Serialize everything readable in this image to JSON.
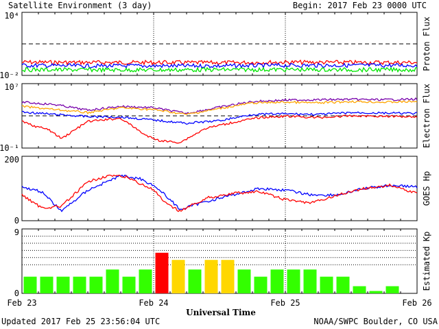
{
  "header": {
    "title": "Satellite Environment (3 day)",
    "begin": "Begin:  2017 Feb 23 0000 UTC"
  },
  "footer": {
    "updated": "Updated 2017 Feb 25 23:56:04 UTC",
    "credit": "NOAA/SWPC Boulder, CO USA"
  },
  "colors": {
    "red": "#ff0000",
    "blue": "#0000ff",
    "green": "#00e600",
    "purple": "#7700aa",
    "orange": "#ffa500",
    "kp_green": "#33ff00",
    "kp_yellow": "#ffd700",
    "kp_red": "#ff0000"
  },
  "chart_data": [
    {
      "type": "line",
      "ylabel": "Proton Flux",
      "yscale": "log",
      "ylim": [
        0.01,
        10000
      ],
      "y_ticks": [
        "10⁴",
        "10⁻²"
      ],
      "threshold": 10,
      "x_ticks": [
        "Feb 23",
        "Feb 24",
        "Feb 25",
        "Feb 26"
      ],
      "series": [
        {
          "color": "red",
          "x": [
            0,
            0.5,
            1,
            1.5,
            2,
            2.5,
            3
          ],
          "values": [
            0.18,
            0.17,
            0.17,
            0.16,
            0.18,
            0.17,
            0.17
          ]
        },
        {
          "color": "blue",
          "x": [
            0,
            0.5,
            1,
            1.5,
            2,
            2.5,
            3
          ],
          "values": [
            0.09,
            0.08,
            0.08,
            0.08,
            0.09,
            0.09,
            0.09
          ]
        },
        {
          "color": "green",
          "x": [
            0,
            0.5,
            1,
            1.5,
            2,
            2.5,
            3
          ],
          "values": [
            0.035,
            0.034,
            0.033,
            0.035,
            0.036,
            0.034,
            0.035
          ]
        }
      ]
    },
    {
      "type": "line",
      "ylabel": "Electron Flux",
      "yscale": "log",
      "ylim": [
        0.1,
        10000000
      ],
      "y_ticks": [
        "10⁷",
        "10⁻¹"
      ],
      "threshold": 1000,
      "x_ticks": [
        "Feb 23",
        "Feb 24",
        "Feb 25",
        "Feb 26"
      ],
      "series": [
        {
          "color": "purple",
          "x": [
            0,
            0.25,
            0.5,
            0.75,
            1,
            1.25,
            1.5,
            1.75,
            2,
            2.25,
            2.5,
            2.75,
            3
          ],
          "values": [
            50000,
            25000,
            5000,
            15000,
            10000,
            2000,
            12000,
            60000,
            90000,
            100000,
            110000,
            100000,
            120000
          ]
        },
        {
          "color": "orange",
          "x": [
            0,
            0.25,
            0.5,
            0.75,
            1,
            1.25,
            1.5,
            1.75,
            2,
            2.25,
            2.5,
            2.75,
            3
          ],
          "values": [
            15000,
            6000,
            2500,
            10000,
            6000,
            1500,
            8000,
            40000,
            50000,
            40000,
            60000,
            50000,
            60000
          ]
        },
        {
          "color": "blue",
          "x": [
            0,
            0.25,
            0.5,
            0.75,
            1,
            1.25,
            1.5,
            1.75,
            2,
            2.25,
            2.5,
            2.75,
            3
          ],
          "values": [
            3000,
            1500,
            800,
            700,
            300,
            120,
            250,
            1500,
            1800,
            1500,
            2500,
            2200,
            2000
          ]
        },
        {
          "color": "red",
          "x": [
            0,
            0.1,
            0.2,
            0.3,
            0.5,
            0.75,
            0.95,
            1.05,
            1.2,
            1.4,
            1.6,
            1.8,
            2,
            2.25,
            2.5,
            2.75,
            3
          ],
          "values": [
            200,
            50,
            20,
            1.5,
            200,
            500,
            3,
            0.8,
            0.5,
            30,
            150,
            600,
            900,
            600,
            1000,
            900,
            800
          ]
        }
      ]
    },
    {
      "type": "line",
      "ylabel": "GOES Hp",
      "ylim": [
        0,
        200
      ],
      "y_ticks": [
        "200",
        "0"
      ],
      "x_ticks": [
        "Feb 23",
        "Feb 24",
        "Feb 25",
        "Feb 26"
      ],
      "series": [
        {
          "color": "blue",
          "x": [
            0,
            0.15,
            0.3,
            0.5,
            0.75,
            0.9,
            1,
            1.1,
            1.2,
            1.4,
            1.6,
            1.8,
            2,
            2.2,
            2.4,
            2.6,
            2.8,
            3
          ],
          "values": [
            105,
            90,
            30,
            95,
            140,
            130,
            110,
            75,
            35,
            60,
            80,
            100,
            95,
            80,
            80,
            100,
            110,
            105
          ]
        },
        {
          "color": "red",
          "x": [
            0,
            0.15,
            0.3,
            0.5,
            0.65,
            0.8,
            1,
            1.1,
            1.2,
            1.4,
            1.6,
            1.8,
            2,
            2.2,
            2.4,
            2.6,
            2.8,
            3
          ],
          "values": [
            80,
            40,
            45,
            120,
            140,
            135,
            95,
            50,
            30,
            70,
            85,
            90,
            65,
            55,
            80,
            100,
            110,
            85
          ]
        }
      ]
    },
    {
      "type": "bar",
      "ylabel": "Estimated Kp",
      "ylim": [
        0,
        9
      ],
      "y_ticks": [
        "9",
        "0"
      ],
      "xlabel": "Universal Time",
      "x_ticks": [
        "Feb 23",
        "Feb 24",
        "Feb 25",
        "Feb 26"
      ],
      "values": [
        2.33,
        2.33,
        2.33,
        2.33,
        2.33,
        3.33,
        2.33,
        3.33,
        5.67,
        4.67,
        3.33,
        4.67,
        4.67,
        3.33,
        2.33,
        3.33,
        3.33,
        3.33,
        2.33,
        2.33,
        1.0,
        0.33,
        1.0
      ],
      "bar_colors": [
        "kp_green",
        "kp_green",
        "kp_green",
        "kp_green",
        "kp_green",
        "kp_green",
        "kp_green",
        "kp_green",
        "kp_red",
        "kp_yellow",
        "kp_green",
        "kp_yellow",
        "kp_yellow",
        "kp_green",
        "kp_green",
        "kp_green",
        "kp_green",
        "kp_green",
        "kp_green",
        "kp_green",
        "kp_green",
        "kp_green",
        "kp_green"
      ]
    }
  ]
}
